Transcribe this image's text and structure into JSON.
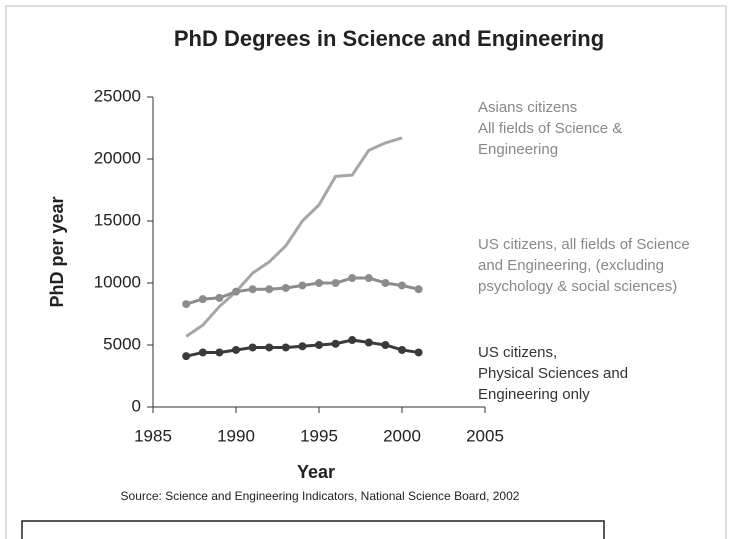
{
  "chart_data": {
    "type": "line",
    "title": "PhD Degrees in Science and Engineering",
    "xlabel": "Year",
    "ylabel": "PhD per year",
    "source": "Source: Science and Engineering Indicators, National Science Board, 2002",
    "x": [
      1987,
      1988,
      1989,
      1990,
      1991,
      1992,
      1993,
      1994,
      1995,
      1996,
      1997,
      1998,
      1999,
      2000,
      2001
    ],
    "series": [
      {
        "name": [
          "Asians citizens",
          "All fields of Science &",
          "Engineering"
        ],
        "color": "#a6a6a6",
        "markers": false,
        "values": [
          5700,
          6600,
          8100,
          9300,
          10800,
          11700,
          13000,
          15000,
          16300,
          18600,
          18700,
          20700,
          21300,
          21700,
          null
        ]
      },
      {
        "name": [
          "US citizens, all fields of Science",
          "and Engineering, (excluding",
          "psychology & social sciences)"
        ],
        "color": "#8c8c8c",
        "markers": true,
        "values": [
          8300,
          8700,
          8800,
          9300,
          9500,
          9500,
          9600,
          9800,
          10000,
          10000,
          10400,
          10400,
          10000,
          9800,
          9500
        ]
      },
      {
        "name": [
          "US citizens,",
          "Physical Sciences and",
          "Engineering only"
        ],
        "color": "#3a3a3a",
        "markers": true,
        "values": [
          4100,
          4400,
          4400,
          4600,
          4800,
          4800,
          4800,
          4900,
          5000,
          5100,
          5400,
          5200,
          5000,
          4600,
          4400
        ]
      }
    ],
    "xlim": [
      1985,
      2005
    ],
    "xticks": [
      1985,
      1990,
      1995,
      2000,
      2005
    ],
    "ylim": [
      0,
      25000
    ],
    "yticks": [
      0,
      5000,
      10000,
      15000,
      20000,
      25000
    ]
  }
}
